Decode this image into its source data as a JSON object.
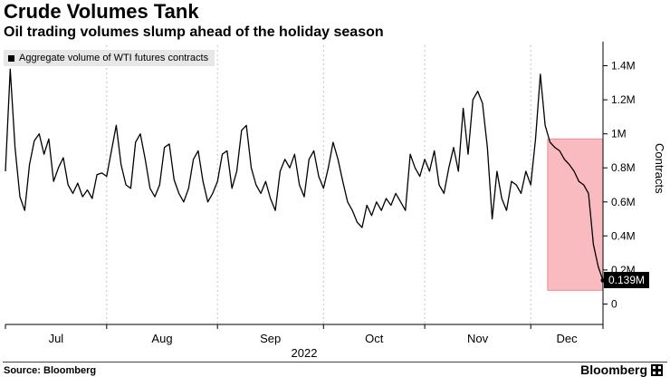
{
  "header": {
    "title": "Crude Volumes Tank",
    "subtitle": "Oil trading volumes slump ahead of the holiday season"
  },
  "legend": {
    "label": "Aggregate volume of WTI futures contracts",
    "marker_color": "#000000"
  },
  "footer": {
    "source": "Source: Bloomberg",
    "brand": "Bloomberg"
  },
  "chart_data": {
    "type": "line",
    "title": "Crude Volumes Tank",
    "subtitle": "Oil trading volumes slump ahead of the holiday season",
    "series_name": "Aggregate volume of WTI futures contracts",
    "ylabel": "Contracts",
    "year": "2022",
    "unit": "M (millions of contracts)",
    "ylim": [
      -0.12,
      1.52
    ],
    "grid": "vertical-dotted-at-month-starts",
    "legend_position": "top-left",
    "line_color": "#000000",
    "grid_color": "#c4c4c4",
    "y_ticks": [
      {
        "value": 0,
        "label": "0"
      },
      {
        "value": 0.2,
        "label": "0.2M"
      },
      {
        "value": 0.4,
        "label": "0.4M"
      },
      {
        "value": 0.6,
        "label": "0.6M"
      },
      {
        "value": 0.8,
        "label": "0.8M"
      },
      {
        "value": 1.0,
        "label": "1M"
      },
      {
        "value": 1.2,
        "label": "1.2M"
      },
      {
        "value": 1.4,
        "label": "1.4M"
      }
    ],
    "months": [
      {
        "label": "Jul",
        "start": 0
      },
      {
        "label": "Aug",
        "start": 21
      },
      {
        "label": "Sep",
        "start": 44
      },
      {
        "label": "Oct",
        "start": 66
      },
      {
        "label": "Nov",
        "start": 87
      },
      {
        "label": "Dec",
        "start": 109
      }
    ],
    "values": [
      0.78,
      1.38,
      0.92,
      0.63,
      0.55,
      0.82,
      0.96,
      1.0,
      0.88,
      0.97,
      0.72,
      0.8,
      0.86,
      0.7,
      0.65,
      0.71,
      0.63,
      0.67,
      0.62,
      0.76,
      0.77,
      0.75,
      0.9,
      1.05,
      0.82,
      0.7,
      0.68,
      0.95,
      1.0,
      0.85,
      0.68,
      0.63,
      0.7,
      0.92,
      0.94,
      0.73,
      0.65,
      0.6,
      0.68,
      0.85,
      0.9,
      0.72,
      0.6,
      0.65,
      0.72,
      0.88,
      0.9,
      0.68,
      0.78,
      1.02,
      1.05,
      0.8,
      0.7,
      0.65,
      0.72,
      0.62,
      0.55,
      0.78,
      0.85,
      0.8,
      0.88,
      0.7,
      0.63,
      0.85,
      0.9,
      0.75,
      0.68,
      0.8,
      0.95,
      0.85,
      0.72,
      0.6,
      0.55,
      0.48,
      0.45,
      0.58,
      0.52,
      0.6,
      0.55,
      0.62,
      0.58,
      0.65,
      0.6,
      0.55,
      0.88,
      0.8,
      0.75,
      0.85,
      0.78,
      0.9,
      0.7,
      0.65,
      0.8,
      0.92,
      0.78,
      1.15,
      0.88,
      1.2,
      1.25,
      1.18,
      0.92,
      0.5,
      0.78,
      0.62,
      0.55,
      0.72,
      0.7,
      0.65,
      0.78,
      0.7,
      0.97,
      1.35,
      1.05,
      0.95,
      0.92,
      0.9,
      0.85,
      0.82,
      0.78,
      0.72,
      0.7,
      0.65,
      0.35,
      0.22,
      0.139
    ],
    "highlight": {
      "start_index": 112.5,
      "end_index": 124,
      "y0": 0.08,
      "y1": 0.97,
      "fill": "#ef4b56",
      "opacity": 0.38
    },
    "last_value": 0.139,
    "last_value_label": "0.139M"
  }
}
